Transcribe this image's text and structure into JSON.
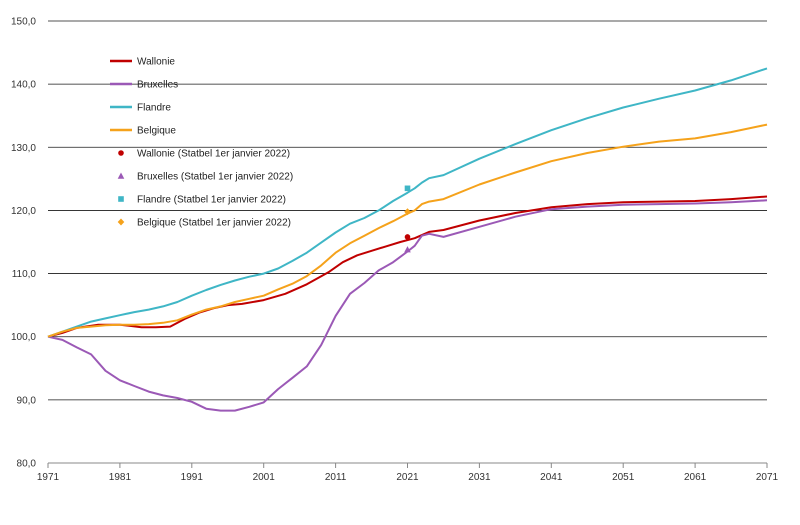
{
  "chart_data": {
    "type": "line",
    "xlim": [
      1971,
      2071
    ],
    "ylim": [
      80,
      150
    ],
    "x_ticks": [
      "1971",
      "1981",
      "1991",
      "2001",
      "2011",
      "2021",
      "2031",
      "2041",
      "2051",
      "2061",
      "2071"
    ],
    "y_ticks": [
      "80,0",
      "90,0",
      "100,0",
      "110,0",
      "120,0",
      "130,0",
      "140,0",
      "150,0"
    ],
    "grid": "horizontal",
    "legend_position": "top-left",
    "series": [
      {
        "name": "Wallonie",
        "color": "#c00000",
        "x": [
          1971,
          1973,
          1975,
          1978,
          1981,
          1984,
          1986,
          1988,
          1990,
          1992,
          1994,
          1996,
          1998,
          2001,
          2004,
          2007,
          2010,
          2012,
          2014,
          2016,
          2018,
          2020,
          2022,
          2024,
          2026,
          2031,
          2036,
          2041,
          2046,
          2051,
          2056,
          2061,
          2066,
          2071
        ],
        "values": [
          100.0,
          100.6,
          101.4,
          101.9,
          101.9,
          101.5,
          101.5,
          101.6,
          102.8,
          103.8,
          104.5,
          105.0,
          105.2,
          105.8,
          106.8,
          108.3,
          110.2,
          111.8,
          112.9,
          113.6,
          114.3,
          115.0,
          115.6,
          116.6,
          116.9,
          118.4,
          119.6,
          120.5,
          121.0,
          121.3,
          121.4,
          121.5,
          121.8,
          122.2
        ]
      },
      {
        "name": "Bruxelles",
        "color": "#9b59b6",
        "x": [
          1971,
          1973,
          1975,
          1977,
          1979,
          1981,
          1983,
          1985,
          1987,
          1989,
          1991,
          1993,
          1995,
          1997,
          1999,
          2001,
          2003,
          2005,
          2007,
          2009,
          2011,
          2013,
          2015,
          2017,
          2019,
          2021,
          2022,
          2023,
          2024,
          2026,
          2031,
          2036,
          2041,
          2046,
          2051,
          2056,
          2061,
          2066,
          2071
        ],
        "values": [
          100.0,
          99.5,
          98.3,
          97.2,
          94.6,
          93.1,
          92.2,
          91.3,
          90.7,
          90.3,
          89.7,
          88.6,
          88.3,
          88.3,
          88.9,
          89.6,
          91.7,
          93.5,
          95.3,
          98.7,
          103.3,
          106.8,
          108.5,
          110.5,
          111.8,
          113.5,
          114.4,
          116.0,
          116.3,
          115.8,
          117.4,
          119.0,
          120.2,
          120.6,
          120.9,
          121.0,
          121.1,
          121.3,
          121.6
        ]
      },
      {
        "name": "Flandre",
        "color": "#3fb6c6",
        "x": [
          1971,
          1973,
          1975,
          1977,
          1979,
          1981,
          1983,
          1985,
          1987,
          1989,
          1991,
          1993,
          1995,
          1997,
          1999,
          2001,
          2003,
          2005,
          2007,
          2009,
          2011,
          2013,
          2015,
          2017,
          2019,
          2021,
          2022,
          2023,
          2024,
          2026,
          2031,
          2036,
          2041,
          2046,
          2051,
          2056,
          2061,
          2066,
          2071
        ],
        "values": [
          100.0,
          100.8,
          101.6,
          102.4,
          102.9,
          103.4,
          103.9,
          104.3,
          104.8,
          105.5,
          106.5,
          107.4,
          108.2,
          108.9,
          109.5,
          110.0,
          110.8,
          112.0,
          113.3,
          114.9,
          116.5,
          117.9,
          118.8,
          120.0,
          121.5,
          122.8,
          123.5,
          124.4,
          125.1,
          125.6,
          128.2,
          130.5,
          132.7,
          134.6,
          136.3,
          137.7,
          139.0,
          140.6,
          142.5
        ]
      },
      {
        "name": "Belgique",
        "color": "#f5a21b",
        "x": [
          1971,
          1973,
          1975,
          1977,
          1979,
          1981,
          1983,
          1985,
          1987,
          1989,
          1991,
          1993,
          1995,
          1997,
          1999,
          2001,
          2003,
          2005,
          2007,
          2009,
          2011,
          2013,
          2015,
          2017,
          2019,
          2021,
          2022,
          2023,
          2024,
          2026,
          2031,
          2036,
          2041,
          2046,
          2051,
          2056,
          2061,
          2066,
          2071
        ],
        "values": [
          100.0,
          100.8,
          101.4,
          101.6,
          101.8,
          101.9,
          101.9,
          102.0,
          102.2,
          102.6,
          103.5,
          104.3,
          104.8,
          105.5,
          106.0,
          106.5,
          107.5,
          108.4,
          109.6,
          111.3,
          113.3,
          114.8,
          116.0,
          117.2,
          118.3,
          119.5,
          120.0,
          121.0,
          121.4,
          121.8,
          124.1,
          126.0,
          127.8,
          129.1,
          130.1,
          130.9,
          131.4,
          132.4,
          133.6
        ]
      }
    ],
    "points": [
      {
        "name": "Wallonie (Statbel 1er janvier 2022)",
        "color": "#c00000",
        "marker": "circle",
        "x": 2021,
        "y": 115.8
      },
      {
        "name": "Bruxelles (Statbel 1er janvier 2022)",
        "color": "#9b59b6",
        "marker": "triangle",
        "x": 2021,
        "y": 113.8
      },
      {
        "name": "Flandre (Statbel 1er janvier 2022)",
        "color": "#3fb6c6",
        "marker": "square",
        "x": 2021,
        "y": 123.5
      },
      {
        "name": "Belgique (Statbel 1er janvier 2022)",
        "color": "#f5a21b",
        "marker": "diamond",
        "x": 2021,
        "y": 119.8
      }
    ]
  }
}
